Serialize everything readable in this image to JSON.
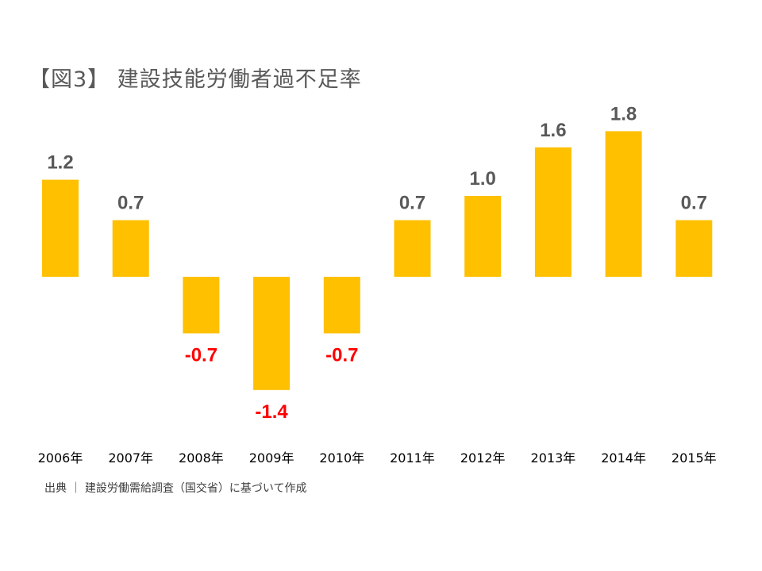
{
  "title": "【図3】 建設技能労働者過不足率",
  "source": "出典 ｜ 建設労働需給調査（国交省）に基づいて作成",
  "colors": {
    "bar": "#FFC000",
    "positive_label": "#595959",
    "negative_label": "#FF0000",
    "category_label": "#000000"
  },
  "chart_data": {
    "type": "bar",
    "categories": [
      "2006年",
      "2007年",
      "2008年",
      "2009年",
      "2010年",
      "2011年",
      "2012年",
      "2013年",
      "2014年",
      "2015年"
    ],
    "values": [
      1.2,
      0.7,
      -0.7,
      -1.4,
      -0.7,
      0.7,
      1.0,
      1.6,
      1.8,
      0.7
    ],
    "data_labels": [
      "1.2",
      "0.7",
      "-0.7",
      "-1.4",
      "-0.7",
      "0.7",
      "1.0",
      "1.6",
      "1.8",
      "0.7"
    ],
    "title": "【図3】 建設技能労働者過不足率",
    "xlabel": "",
    "ylabel": "",
    "grid": false
  }
}
